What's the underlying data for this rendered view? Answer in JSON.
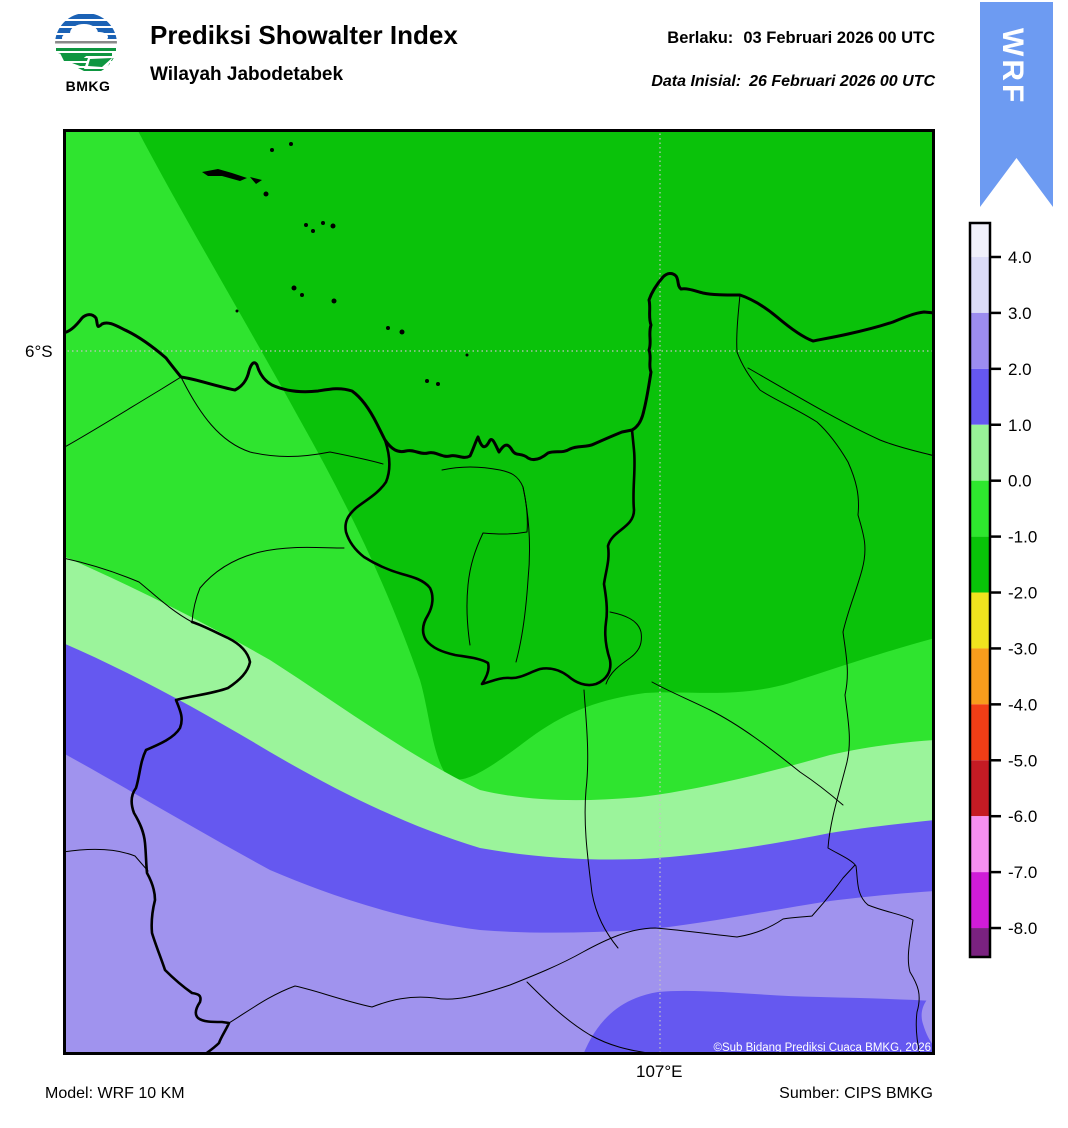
{
  "header": {
    "logo_text": "BMKG",
    "title": "Prediksi Showalter Index",
    "subtitle": "Wilayah Jabodetabek",
    "valid_label": "Berlaku:",
    "valid_value": "03 Februari 2026 00 UTC",
    "initial_label": "Data Inisial:",
    "initial_value": "26 Februari 2026 00 UTC",
    "ribbon_text": "WRF"
  },
  "map": {
    "lat_label": "6°S",
    "lon_label": "107°E",
    "copyright": "©Sub Bidang Prediksi Cuaca BMKG, 2026"
  },
  "footer": {
    "model": "Model: WRF 10 KM",
    "source": "Sumber: CIPS BMKG"
  },
  "colorbar": {
    "tick_labels": [
      "4.0",
      "3.0",
      "2.0",
      "1.0",
      "0.0",
      "-1.0",
      "-2.0",
      "-3.0",
      "-4.0",
      "-5.0",
      "-6.0",
      "-7.0",
      "-8.0"
    ],
    "segment_colors": [
      "#F1F1FB",
      "#DCDCF8",
      "#9C8CF0",
      "#6557F2",
      "#97F397",
      "#2EE82E",
      "#08C408",
      "#F0E41E",
      "#F89C1C",
      "#F23E16",
      "#C41B24",
      "#F78FF2",
      "#D01CD8",
      "#7A2280"
    ]
  },
  "colors": {
    "dark_green": "#0AC20A",
    "bright_green": "#2FE42F",
    "light_green": "#9BF49B",
    "blue": "#6558F0",
    "purple": "#A093EE",
    "ribbon_blue": "#6D9BF2",
    "grid": "#C4C4C4",
    "logo_blue": "#1B62B5",
    "logo_green": "#0E9640"
  }
}
